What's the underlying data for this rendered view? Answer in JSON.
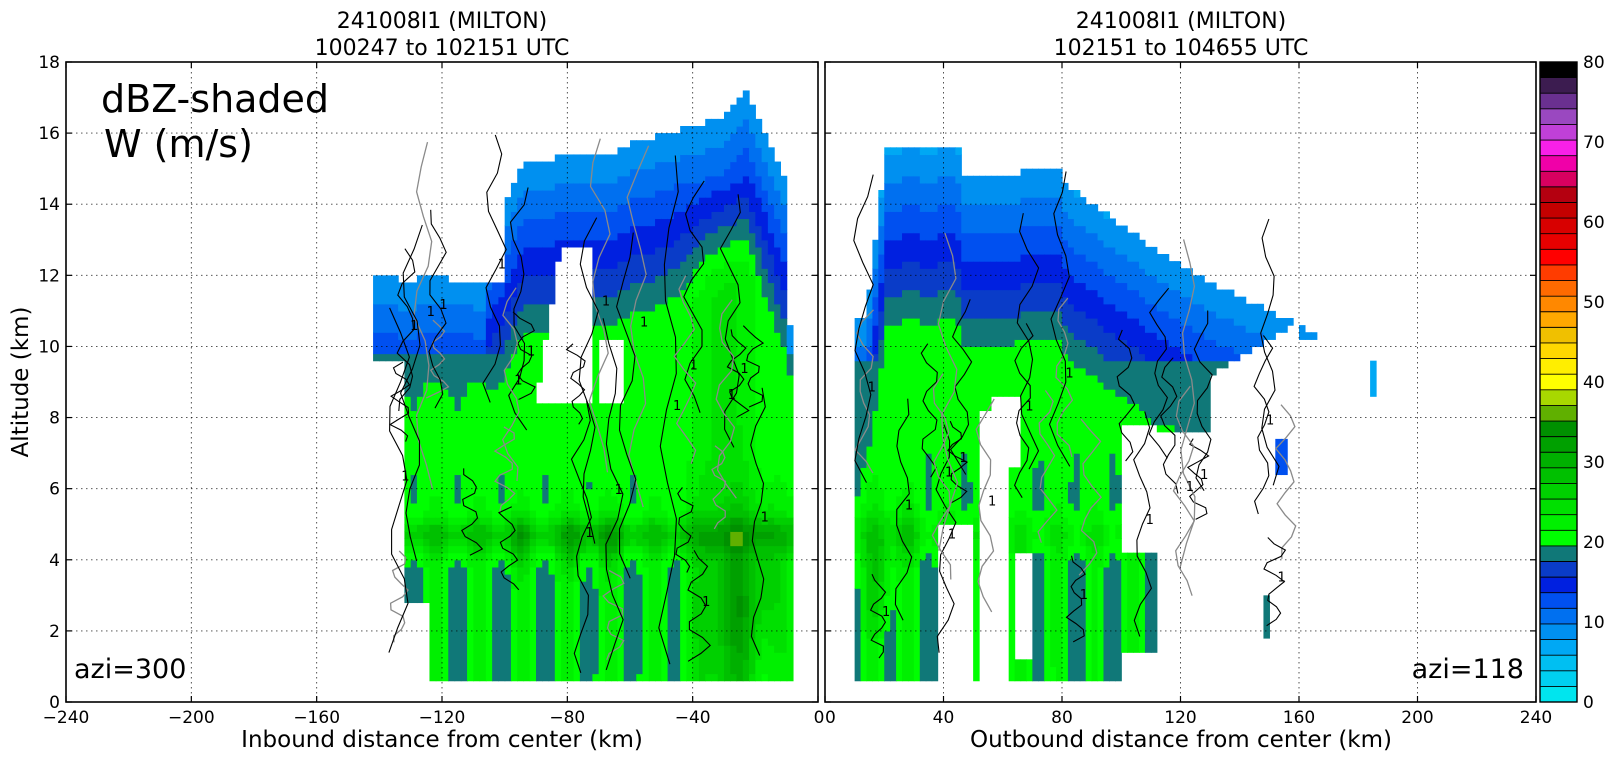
{
  "chart_data": [
    {
      "type": "heatmap",
      "title_line1": "241008I1 (MILTON)",
      "title_line2": "100247 to 102151 UTC",
      "xlabel": "Inbound distance from center (km)",
      "ylabel": "Altitude (km)",
      "xlim": [
        -240,
        0
      ],
      "ylim": [
        0,
        18
      ],
      "xticks": [
        "−240",
        "−200",
        "−160",
        "−120",
        "−80",
        "−40",
        "0"
      ],
      "xtick_values": [
        -240,
        -200,
        -160,
        -120,
        -80,
        -40,
        0
      ],
      "yticks": [
        "0",
        "2",
        "4",
        "6",
        "8",
        "10",
        "12",
        "14",
        "16",
        "18"
      ],
      "ytick_values": [
        0,
        2,
        4,
        6,
        8,
        10,
        12,
        14,
        16,
        18
      ],
      "grid": true,
      "annotation_main": [
        "dBZ-shaded",
        "W (m/s)"
      ],
      "azimuth_label": "azi=300",
      "shaded_field": "reflectivity (dBZ)",
      "contour_field": "vertical velocity W (m/s)",
      "contour_label": "1",
      "echo_x_range": [
        -140,
        -8
      ],
      "echo_y_range": [
        0.6,
        17.3
      ]
    },
    {
      "type": "heatmap",
      "title_line1": "241008I1 (MILTON)",
      "title_line2": "102151 to 104655 UTC",
      "xlabel": "Outbound distance from center (km)",
      "ylabel": "",
      "xlim": [
        0,
        240
      ],
      "ylim": [
        0,
        18
      ],
      "xticks": [
        "0",
        "40",
        "80",
        "120",
        "160",
        "200",
        "240"
      ],
      "xtick_values": [
        0,
        40,
        80,
        120,
        160,
        200,
        240
      ],
      "grid": true,
      "azimuth_label": "azi=118",
      "shaded_field": "reflectivity (dBZ)",
      "contour_field": "vertical velocity W (m/s)",
      "contour_label": "1",
      "echo_x_range": [
        10,
        186
      ],
      "echo_y_range": [
        0.5,
        16
      ]
    }
  ],
  "colorbar": {
    "tick_labels": [
      "0",
      "10",
      "20",
      "30",
      "40",
      "50",
      "60",
      "70",
      "80"
    ],
    "min": 0,
    "max": 80,
    "step": 2,
    "colors": [
      "#00E5EE",
      "#00D0F0",
      "#00BFF2",
      "#00A8F4",
      "#0090F0",
      "#0070F0",
      "#0050F0",
      "#0020E0",
      "#0A3CC8",
      "#107878",
      "#00FF00",
      "#00F000",
      "#00E000",
      "#00D000",
      "#00C000",
      "#00B000",
      "#00A000",
      "#009000",
      "#60B000",
      "#A8D800",
      "#FFFF00",
      "#FFEE00",
      "#FFD800",
      "#F0C000",
      "#FFA800",
      "#FF8800",
      "#FF6A00",
      "#FF3C00",
      "#FF0000",
      "#E80000",
      "#D80000",
      "#C40000",
      "#B40010",
      "#D80060",
      "#F000A8",
      "#F820E8",
      "#C040D8",
      "#9A48C0",
      "#6A3090",
      "#3C1C50",
      "#000000"
    ]
  }
}
